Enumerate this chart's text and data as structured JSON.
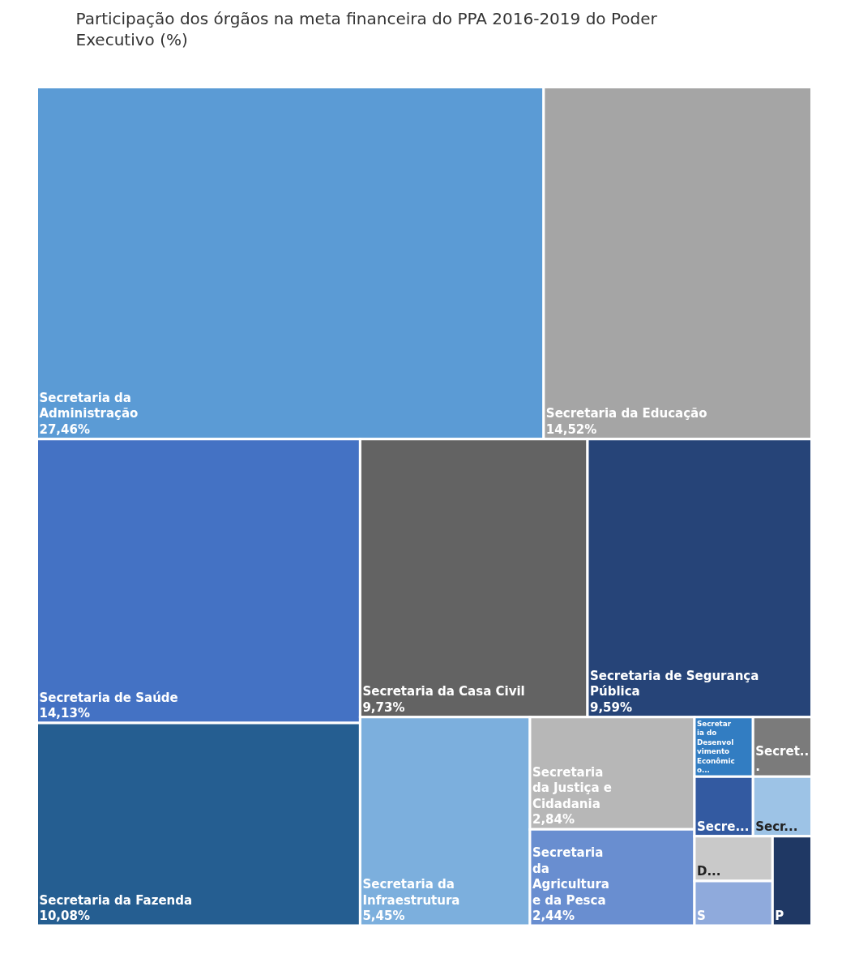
{
  "chart_data": {
    "type": "other",
    "title": "Participação dos órgãos na meta financeira do PPA 2016-2019 do Poder Executivo (%)",
    "categories": [
      "Secretaria da Administração",
      "Secretaria da Educação",
      "Secretaria de Saúde",
      "Secretaria da Fazenda",
      "Secretaria da Casa Civil",
      "Secretaria de Segurança Pública",
      "Secretaria da Infraestrutura",
      "Secretaria da Justiça e Cidadania",
      "Secretaria da Agricultura e da Pesca",
      "Secretaria do Desenvolvimento Econômico...",
      "Secret...",
      "Secre...",
      "Secr...",
      "D...",
      "S",
      "P"
    ],
    "values": [
      27.46,
      14.52,
      14.13,
      10.08,
      9.73,
      9.59,
      5.45,
      2.84,
      2.44,
      null,
      null,
      null,
      null,
      null,
      null,
      null
    ],
    "value_labels": [
      "27,46%",
      "14,52%",
      "14,13%",
      "10,08%",
      "9,73%",
      "9,59%",
      "5,45%",
      "2,84%",
      "2,44%",
      null,
      null,
      null,
      null,
      null,
      null,
      null
    ],
    "colors": [
      "#5b9bd5",
      "#a5a5a5",
      "#4472c4",
      "#255e91",
      "#636363",
      "#264478",
      "#7cafdd",
      "#b7b7b7",
      "#698ed0",
      "#327dc2",
      "#7b7b7b",
      "#335aa1",
      "#9dc3e6",
      "#c9c9c9",
      "#8faadc",
      "#1f3864"
    ]
  }
}
